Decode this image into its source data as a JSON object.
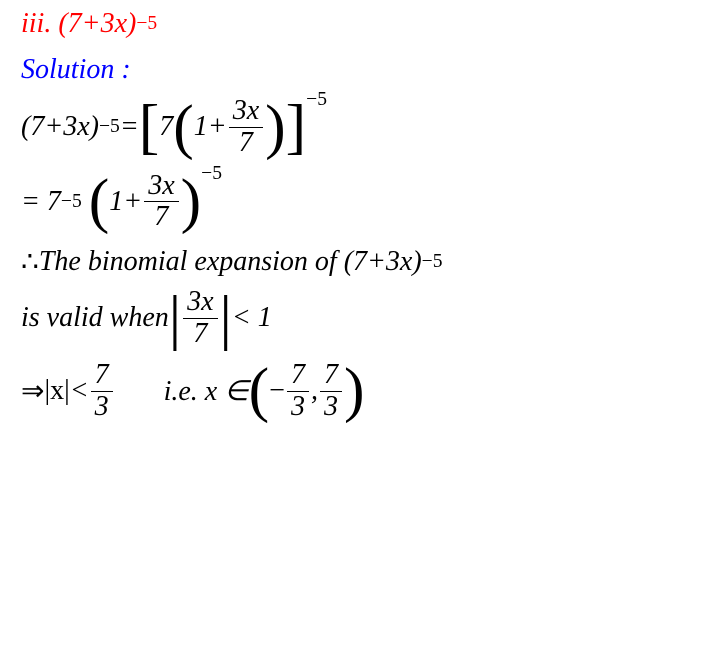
{
  "colors": {
    "red": "#ff0000",
    "blue": "#0000ff",
    "black": "#000000",
    "background": "#ffffff"
  },
  "typography": {
    "font_family": "Times New Roman, serif",
    "font_style": "italic",
    "base_fontsize": 28
  },
  "line1": {
    "label": "iii.",
    "expr_base": "(7+3x)",
    "expr_exp": "−5"
  },
  "line2": {
    "text": "Solution :"
  },
  "line3": {
    "lhs_base": "(7+3x)",
    "lhs_exp": "−5",
    "eq": " = ",
    "bracket_open": "[",
    "seven": "7",
    "paren_open": "(",
    "one_plus": "1+",
    "frac_num": "3x",
    "frac_den": "7",
    "paren_close": ")",
    "bracket_close": "]",
    "outer_exp": "−5"
  },
  "line4": {
    "eq": " = 7",
    "exp1": "−5",
    "paren_open": "(",
    "one_plus": "1+ ",
    "frac_num": "3x",
    "frac_den": "7",
    "paren_close": ")",
    "outer_exp": "−5"
  },
  "line5": {
    "therefore": "∴",
    "text": "The binomial expansion of (7+3x)",
    "exp": "−5"
  },
  "line6": {
    "text1": "is valid when ",
    "abs_open": "|",
    "frac_num": "3x",
    "frac_den": "7",
    "abs_close": "|",
    "lt": " < 1"
  },
  "line7": {
    "arrow": "⇒ ",
    "abs_x": "|x|",
    "lt": " < ",
    "frac1_num": "7",
    "frac1_den": "3",
    "gap": "       ",
    "ie": "i.e. x ∈ ",
    "paren_open": "(",
    "minus": "−",
    "frac2_num": "7",
    "frac2_den": "3",
    "comma": ", ",
    "frac3_num": "7",
    "frac3_den": "3",
    "paren_close": ")"
  }
}
